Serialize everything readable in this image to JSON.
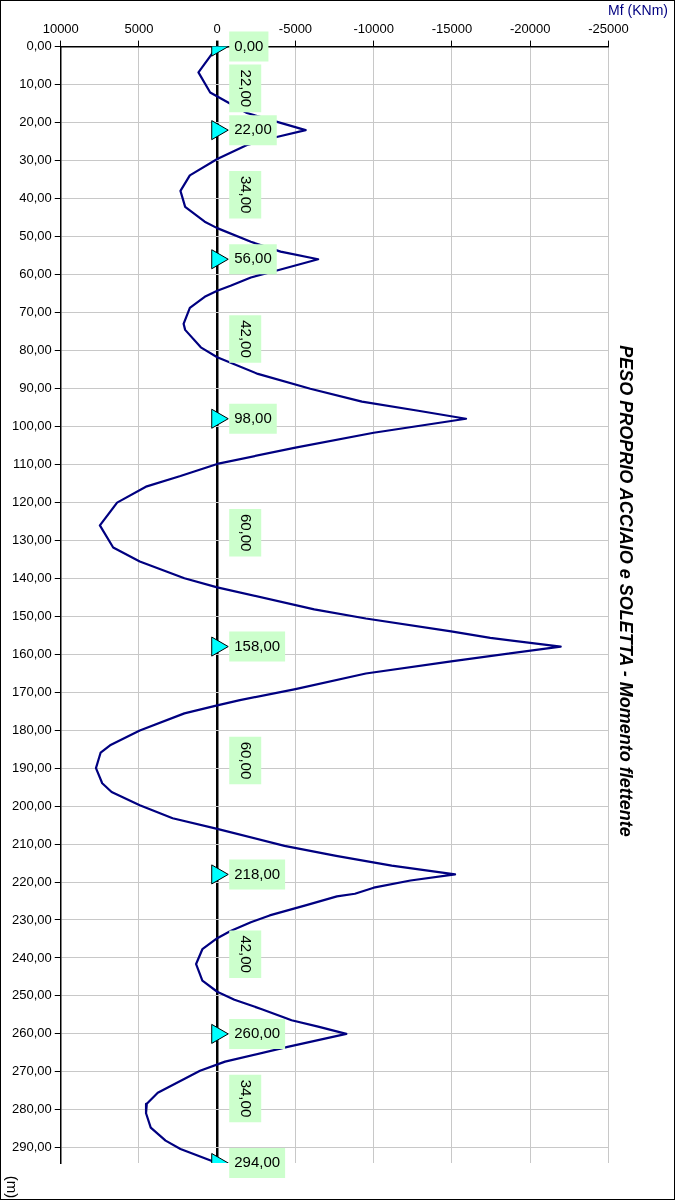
{
  "chart_data": {
    "type": "line",
    "title": "PESO PROPRIO ACCIAIO e SOLETTA - Momento flettente",
    "xlabel": "Mf (KNm)",
    "ylabel": "(m)",
    "xlim": [
      10000,
      -25000
    ],
    "xticks": [
      10000,
      5000,
      0,
      -5000,
      -10000,
      -15000,
      -20000,
      -25000
    ],
    "ylim": [
      294,
      0
    ],
    "yticks": [
      {
        "value": 0,
        "label": "0,00"
      },
      {
        "value": 10,
        "label": "10,00"
      },
      {
        "value": 20,
        "label": "20,00"
      },
      {
        "value": 30,
        "label": "30,00"
      },
      {
        "value": 40,
        "label": "40,00"
      },
      {
        "value": 50,
        "label": "50,00"
      },
      {
        "value": 60,
        "label": "60,00"
      },
      {
        "value": 70,
        "label": "70,00"
      },
      {
        "value": 80,
        "label": "80,00"
      },
      {
        "value": 90,
        "label": "90,00"
      },
      {
        "value": 100,
        "label": "100,00"
      },
      {
        "value": 110,
        "label": "110,00"
      },
      {
        "value": 120,
        "label": "120,00"
      },
      {
        "value": 130,
        "label": "130,00"
      },
      {
        "value": 140,
        "label": "140,00"
      },
      {
        "value": 150,
        "label": "150,00"
      },
      {
        "value": 160,
        "label": "160,00"
      },
      {
        "value": 170,
        "label": "170,00"
      },
      {
        "value": 180,
        "label": "180,00"
      },
      {
        "value": 190,
        "label": "190,00"
      },
      {
        "value": 200,
        "label": "200,00"
      },
      {
        "value": 210,
        "label": "210,00"
      },
      {
        "value": 220,
        "label": "220,00"
      },
      {
        "value": 230,
        "label": "230,00"
      },
      {
        "value": 240,
        "label": "240,00"
      },
      {
        "value": 250,
        "label": "250,00"
      },
      {
        "value": 260,
        "label": "260,00"
      },
      {
        "value": 270,
        "label": "270,00"
      },
      {
        "value": 280,
        "label": "280,00"
      },
      {
        "value": 290,
        "label": "290,00"
      }
    ],
    "grid": true,
    "series": [
      {
        "color": "#000080",
        "marker": "none",
        "x": [
          0,
          1200,
          450,
          -1900,
          -4050,
          -5650,
          -3800,
          -1900,
          0,
          1750,
          2350,
          2050,
          800,
          0,
          -2150,
          -4050,
          -6450,
          -4050,
          -2150,
          -850,
          0,
          800,
          1750,
          2150,
          2050,
          1050,
          0,
          -2600,
          -5950,
          -9250,
          -12850,
          -15900,
          -10000,
          -5000,
          0,
          2350,
          4500,
          6400,
          7500,
          6650,
          4950,
          2100,
          0,
          -6200,
          -9500,
          -14950,
          -17450,
          -21950,
          -14950,
          -9500,
          -5000,
          -1450,
          0,
          2100,
          4950,
          6850,
          7450,
          7750,
          7350,
          6750,
          4950,
          2850,
          0,
          -4300,
          -7600,
          -11150,
          -15200,
          -12350,
          -10000,
          -8800,
          -7650,
          -5700,
          -3350,
          -2150,
          -850,
          0,
          950,
          1350,
          950,
          0,
          -1100,
          -2850,
          -4750,
          -6450,
          -8250,
          -4500,
          -500,
          1100,
          3800,
          4500,
          4550,
          4250,
          3300,
          2350,
          0
        ],
        "values": [
          0,
          6.8,
          12.1,
          17.5,
          20.1,
          22,
          23.8,
          25.9,
          29.6,
          33.9,
          38,
          42.2,
          46.1,
          47.8,
          51.4,
          54,
          56,
          58.7,
          60.8,
          63,
          64.3,
          65.9,
          68.8,
          73,
          74.6,
          79.2,
          81.8,
          86.2,
          90.1,
          93.5,
          95.9,
          98,
          101.7,
          105.6,
          109.9,
          113.1,
          115.8,
          120.1,
          126.1,
          131.9,
          135.6,
          140,
          142.4,
          148.2,
          150.6,
          154,
          155.7,
          158,
          161.9,
          165.1,
          169.2,
          172.1,
          173.5,
          175.6,
          180.1,
          184,
          185.9,
          190,
          194,
          196.3,
          199.8,
          203.2,
          206,
          210.5,
          213.1,
          215.7,
          218,
          219.6,
          221.5,
          223.1,
          223.8,
          226.1,
          228.8,
          230.6,
          232.9,
          234.8,
          237.7,
          241.6,
          246,
          248.9,
          251,
          253.5,
          256.4,
          258.1,
          260,
          263.4,
          267.3,
          269.7,
          275.5,
          278.4,
          280.9,
          284.7,
          288.1,
          290.3,
          294
        ]
      },
      {
        "type": "scatter",
        "color": "#00ffff",
        "marker": "triangle",
        "x": [
          0,
          0,
          0,
          0,
          0,
          0,
          0,
          0
        ],
        "values": [
          0,
          22,
          56,
          98,
          158,
          218,
          260,
          294
        ],
        "value_labels": [
          "0,00",
          "22,00",
          "56,00",
          "98,00",
          "158,00",
          "218,00",
          "260,00",
          "294,00"
        ]
      }
    ],
    "annotations": [
      "22,00",
      "34,00",
      "42,00",
      "60,00",
      "60,00",
      "42,00",
      "34,00"
    ]
  }
}
